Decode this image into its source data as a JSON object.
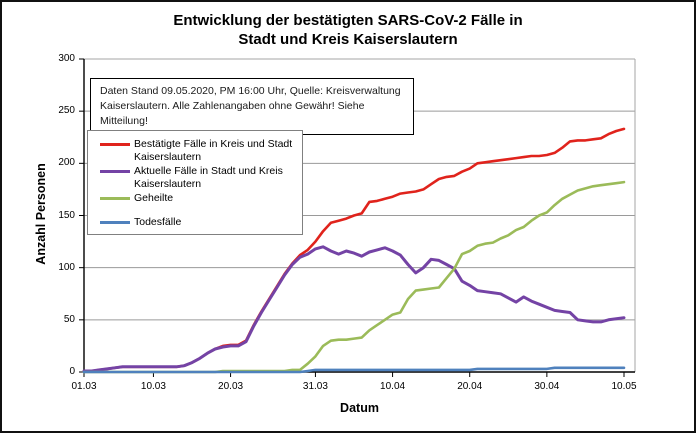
{
  "title": {
    "line1": "Entwicklung der bestätigten SARS-CoV-2 Fälle in",
    "line2": "Stadt und Kreis Kaiserslautern"
  },
  "annotation": {
    "lines": [
      "Daten Stand 09.05.2020, PM 16:00 Uhr, Quelle: Kreisverwaltung",
      "Kaiserslautern. Alle Zahlenangaben ohne Gewähr! Siehe Mitteilung!"
    ]
  },
  "chart_data": {
    "type": "line",
    "title": "Entwicklung der bestätigten SARS-CoV-2 Fälle in Stadt und Kreis Kaiserslautern",
    "xlabel": "Datum",
    "ylabel": "Anzahl Personen",
    "ylim": [
      0,
      300
    ],
    "yticks": [
      0,
      50,
      100,
      150,
      200,
      250,
      300
    ],
    "grid": true,
    "legend_position": "upper-left-inside",
    "xticks": [
      {
        "label": "01.03",
        "day": 0
      },
      {
        "label": "10.03",
        "day": 9
      },
      {
        "label": "20.03",
        "day": 19
      },
      {
        "label": "31.03",
        "day": 30
      },
      {
        "label": "10.04",
        "day": 40
      },
      {
        "label": "20.04",
        "day": 50
      },
      {
        "label": "30.04",
        "day": 60
      },
      {
        "label": "10.05",
        "day": 70
      }
    ],
    "x_dates": [
      "01.03",
      "02.03",
      "03.03",
      "04.03",
      "05.03",
      "06.03",
      "07.03",
      "08.03",
      "09.03",
      "10.03",
      "11.03",
      "12.03",
      "13.03",
      "14.03",
      "15.03",
      "16.03",
      "17.03",
      "18.03",
      "19.03",
      "20.03",
      "21.03",
      "22.03",
      "23.03",
      "24.03",
      "25.03",
      "26.03",
      "27.03",
      "28.03",
      "29.03",
      "30.03",
      "31.03",
      "01.04",
      "02.04",
      "03.04",
      "04.04",
      "05.04",
      "06.04",
      "07.04",
      "08.04",
      "09.04",
      "10.04",
      "11.04",
      "12.04",
      "13.04",
      "14.04",
      "15.04",
      "16.04",
      "17.04",
      "18.04",
      "19.04",
      "20.04",
      "21.04",
      "22.04",
      "23.04",
      "24.04",
      "25.04",
      "26.04",
      "27.04",
      "28.04",
      "29.04",
      "30.04",
      "01.05",
      "02.05",
      "03.05",
      "04.05",
      "05.05",
      "06.05",
      "07.05",
      "08.05",
      "09.05",
      "10.05"
    ],
    "series": [
      {
        "name": "Bestätigte Fälle in Kreis und Stadt Kaiserslautern",
        "color": "#e0231c",
        "width": 2.6,
        "values": [
          1,
          1,
          2,
          3,
          4,
          5,
          5,
          5,
          5,
          5,
          5,
          5,
          5,
          6,
          9,
          13,
          18,
          22,
          25,
          26,
          26,
          30,
          45,
          58,
          70,
          82,
          94,
          104,
          112,
          117,
          125,
          135,
          143,
          145,
          147,
          150,
          152,
          163,
          164,
          166,
          168,
          171,
          172,
          173,
          175,
          180,
          185,
          187,
          188,
          192,
          195,
          200,
          201,
          202,
          203,
          204,
          205,
          206,
          207,
          207,
          208,
          210,
          215,
          221,
          222,
          222,
          223,
          224,
          228,
          231,
          233
        ]
      },
      {
        "name": "Aktuelle Fälle in Stadt und Kreis Kaiserslautern",
        "color": "#7443a5",
        "width": 3,
        "values": [
          1,
          1,
          2,
          3,
          4,
          5,
          5,
          5,
          5,
          5,
          5,
          5,
          5,
          6,
          9,
          13,
          18,
          22,
          24,
          25,
          25,
          29,
          44,
          57,
          69,
          81,
          93,
          103,
          110,
          113,
          118,
          120,
          116,
          113,
          116,
          114,
          111,
          115,
          117,
          119,
          116,
          112,
          103,
          95,
          100,
          108,
          107,
          103,
          99,
          87,
          83,
          78,
          77,
          76,
          75,
          71,
          67,
          72,
          68,
          65,
          62,
          59,
          58,
          57,
          50,
          49,
          48,
          48,
          50,
          51,
          52
        ]
      },
      {
        "name": "Geheilte",
        "color": "#9bbb59",
        "width": 2.6,
        "values": [
          0,
          0,
          0,
          0,
          0,
          0,
          0,
          0,
          0,
          0,
          0,
          0,
          0,
          0,
          0,
          0,
          0,
          0,
          1,
          1,
          1,
          1,
          1,
          1,
          1,
          1,
          1,
          2,
          2,
          8,
          15,
          25,
          30,
          31,
          31,
          32,
          33,
          40,
          45,
          50,
          55,
          57,
          70,
          78,
          79,
          80,
          81,
          90,
          99,
          113,
          116,
          121,
          123,
          124,
          128,
          131,
          136,
          139,
          145,
          150,
          153,
          160,
          166,
          170,
          174,
          176,
          178,
          179,
          180,
          181,
          182
        ]
      },
      {
        "name": "Todesfälle",
        "color": "#4f81bd",
        "width": 2.6,
        "values": [
          0,
          0,
          0,
          0,
          0,
          0,
          0,
          0,
          0,
          0,
          0,
          0,
          0,
          0,
          0,
          0,
          0,
          0,
          0,
          0,
          0,
          0,
          0,
          0,
          0,
          0,
          0,
          0,
          0,
          1,
          2,
          2,
          2,
          2,
          2,
          2,
          2,
          2,
          2,
          2,
          2,
          2,
          2,
          2,
          2,
          2,
          2,
          2,
          2,
          2,
          2,
          3,
          3,
          3,
          3,
          3,
          3,
          3,
          3,
          3,
          3,
          4,
          4,
          4,
          4,
          4,
          4,
          4,
          4,
          4,
          4
        ]
      }
    ]
  }
}
